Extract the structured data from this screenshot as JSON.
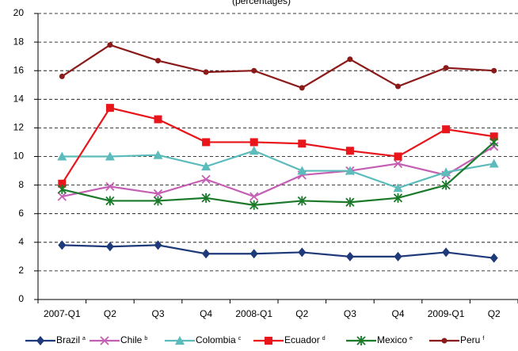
{
  "chart_data": {
    "type": "line",
    "title": "(percentages)",
    "categories": [
      "2007-Q1",
      "Q2",
      "Q3",
      "Q4",
      "2008-Q1",
      "Q2",
      "Q3",
      "Q4",
      "2009-Q1",
      "Q2"
    ],
    "ylim": [
      0,
      20
    ],
    "yticks": [
      0,
      2,
      4,
      6,
      8,
      10,
      12,
      14,
      16,
      18,
      20
    ],
    "grid": true,
    "legend": "bottom",
    "series": [
      {
        "name": "Brazil",
        "footnote": "a",
        "color": "#1f3a7a",
        "marker": "diamond",
        "values": [
          3.8,
          3.7,
          3.8,
          3.2,
          3.2,
          3.3,
          3.0,
          3.0,
          3.3,
          2.9
        ]
      },
      {
        "name": "Chile",
        "footnote": "b",
        "color": "#c45fb4",
        "marker": "x",
        "values": [
          7.2,
          7.9,
          7.4,
          8.4,
          7.2,
          8.7,
          9.0,
          9.5,
          8.7,
          10.7
        ]
      },
      {
        "name": "Colombia",
        "footnote": "c",
        "color": "#5cbcbc",
        "marker": "triangle",
        "values": [
          10.0,
          10.0,
          10.1,
          9.3,
          10.4,
          9.0,
          9.0,
          7.8,
          8.9,
          9.5
        ]
      },
      {
        "name": "Ecuador",
        "footnote": "d",
        "color": "#e8151b",
        "marker": "square",
        "values": [
          8.1,
          13.4,
          12.6,
          11.0,
          11.0,
          10.9,
          10.4,
          10.0,
          11.9,
          11.4
        ]
      },
      {
        "name": "Mexico",
        "footnote": "e",
        "color": "#1a7a2a",
        "marker": "asterisk",
        "values": [
          7.7,
          6.9,
          6.9,
          7.1,
          6.6,
          6.9,
          6.8,
          7.1,
          8.0,
          11.0
        ]
      },
      {
        "name": "Peru",
        "footnote": "f",
        "color": "#8b1a1a",
        "marker": "circle",
        "values": [
          15.6,
          17.8,
          16.7,
          15.9,
          16.0,
          14.8,
          16.8,
          14.9,
          16.2,
          16.0
        ]
      }
    ]
  }
}
